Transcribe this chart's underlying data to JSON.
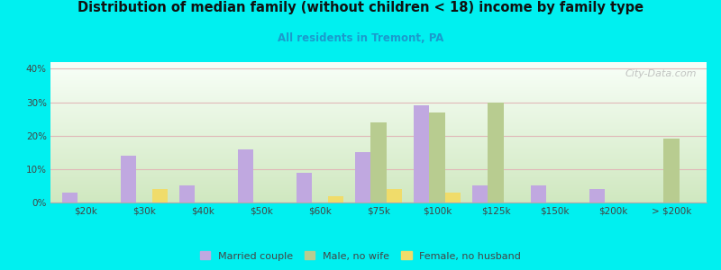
{
  "title": "Distribution of median family (without children < 18) income by family type",
  "subtitle": "All residents in Tremont, PA",
  "categories": [
    "$20k",
    "$30k",
    "$40k",
    "$50k",
    "$60k",
    "$75k",
    "$100k",
    "$125k",
    "$150k",
    "$200k",
    "> $200k"
  ],
  "married_couple": [
    3,
    14,
    5,
    16,
    9,
    15,
    29,
    5,
    5,
    4,
    0
  ],
  "male_no_wife": [
    0,
    0,
    0,
    0,
    0,
    24,
    27,
    30,
    0,
    0,
    19
  ],
  "female_no_husband": [
    0,
    4,
    0,
    0,
    2,
    4,
    3,
    0,
    0,
    0,
    0
  ],
  "married_color": "#c0a8e0",
  "male_color": "#b8cc90",
  "female_color": "#f0dc6a",
  "bg_color": "#00f0f0",
  "plot_bg_top": "#f8fff8",
  "plot_bg_bottom": "#d0e8c0",
  "ylim": [
    0,
    42
  ],
  "yticks": [
    0,
    10,
    20,
    30,
    40
  ],
  "ytick_labels": [
    "0%",
    "10%",
    "20%",
    "30%",
    "40%"
  ],
  "watermark": "City-Data.com",
  "bar_width": 0.27,
  "legend_labels": [
    "Married couple",
    "Male, no wife",
    "Female, no husband"
  ]
}
